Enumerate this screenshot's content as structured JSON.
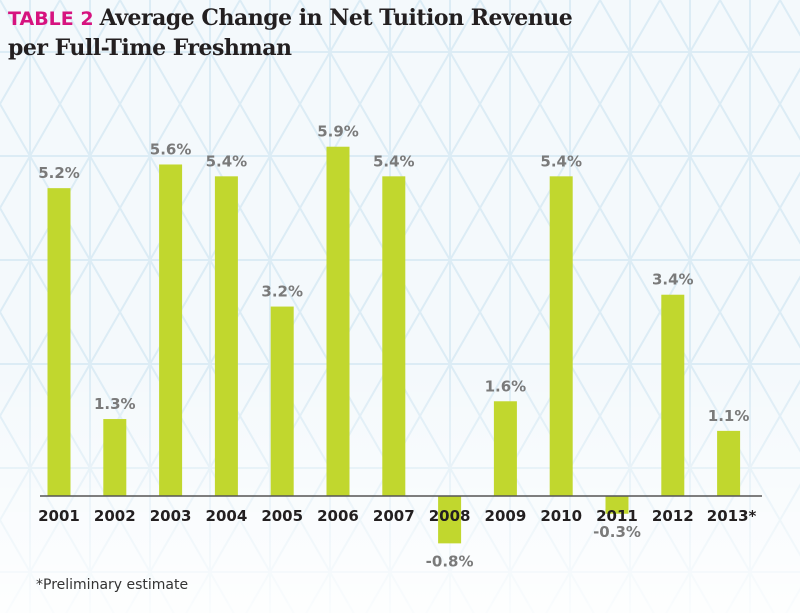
{
  "title": {
    "tag": "TABLE 2",
    "line1": "Average Change in Net Tuition Revenue",
    "line2": "per Full-Time Freshman"
  },
  "footnote": "*Preliminary estimate",
  "colors": {
    "bar": "#c1d72e",
    "tag": "#d6137f",
    "value_label": "#7a7a7a",
    "axis_label": "#231f20",
    "background": "#f4f9fc"
  },
  "chart_data": {
    "type": "bar",
    "title": "Average Change in Net Tuition Revenue per Full-Time Freshman",
    "categories": [
      "2001",
      "2002",
      "2003",
      "2004",
      "2005",
      "2006",
      "2007",
      "2008",
      "2009",
      "2010",
      "2011",
      "2012",
      "2013*"
    ],
    "values": [
      5.2,
      1.3,
      5.6,
      5.4,
      3.2,
      5.9,
      5.4,
      -0.8,
      1.6,
      5.4,
      -0.3,
      3.4,
      1.1
    ],
    "data_labels": [
      "5.2%",
      "1.3%",
      "5.6%",
      "5.4%",
      "3.2%",
      "5.9%",
      "5.4%",
      "-0.8%",
      "1.6%",
      "5.4%",
      "-0.3%",
      "3.4%",
      "1.1%"
    ],
    "unit": "%",
    "xlabel": "",
    "ylabel": "",
    "ylim": [
      -0.8,
      5.9
    ],
    "grid": false,
    "legend": "none"
  }
}
